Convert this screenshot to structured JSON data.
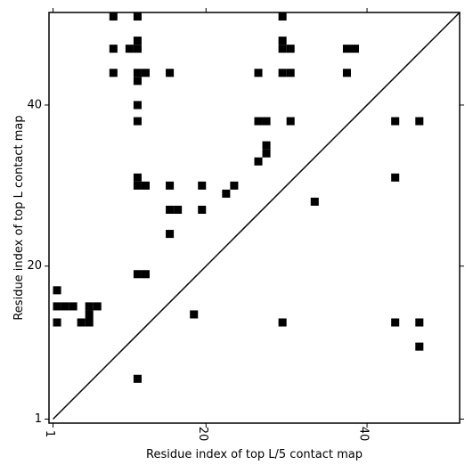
{
  "chart_data": {
    "type": "heatmap",
    "title": "",
    "xlabel": "Residue index of top L/5 contact map",
    "ylabel": "Residue index of top L contact map",
    "xlim": [
      0.5,
      51.5
    ],
    "ylim": [
      0.5,
      51.5
    ],
    "xticks": [
      1,
      20,
      40
    ],
    "yticks": [
      1,
      20,
      40
    ],
    "grid": false,
    "diagonal_line": true,
    "cell_color": "#000000",
    "cells": [
      [
        1.5,
        17
      ],
      [
        1.5,
        15
      ],
      [
        1.5,
        13
      ],
      [
        2.5,
        15
      ],
      [
        3.5,
        15
      ],
      [
        4.5,
        13
      ],
      [
        5.5,
        13
      ],
      [
        5.5,
        14
      ],
      [
        5.5,
        15
      ],
      [
        6.5,
        15
      ],
      [
        8.5,
        51
      ],
      [
        8.5,
        47
      ],
      [
        8.5,
        44
      ],
      [
        10.5,
        47
      ],
      [
        11.5,
        47
      ],
      [
        11.5,
        51
      ],
      [
        11.5,
        48
      ],
      [
        11.5,
        44
      ],
      [
        11.5,
        43
      ],
      [
        11.5,
        40
      ],
      [
        11.5,
        38
      ],
      [
        11.5,
        31
      ],
      [
        11.5,
        30
      ],
      [
        12.5,
        30
      ],
      [
        11.5,
        19
      ],
      [
        12.5,
        19
      ],
      [
        11.5,
        6
      ],
      [
        12.5,
        44
      ],
      [
        15.5,
        44
      ],
      [
        15.5,
        30
      ],
      [
        15.5,
        27
      ],
      [
        16.5,
        27
      ],
      [
        15.5,
        24
      ],
      [
        18.5,
        14
      ],
      [
        19.5,
        30
      ],
      [
        19.5,
        27
      ],
      [
        22.5,
        29
      ],
      [
        23.5,
        30
      ],
      [
        26.5,
        44
      ],
      [
        26.5,
        38
      ],
      [
        27.5,
        38
      ],
      [
        26.5,
        33
      ],
      [
        27.5,
        35
      ],
      [
        27.5,
        34
      ],
      [
        29.5,
        51
      ],
      [
        29.5,
        48
      ],
      [
        29.5,
        47
      ],
      [
        30.5,
        47
      ],
      [
        29.5,
        44
      ],
      [
        30.5,
        44
      ],
      [
        30.5,
        38
      ],
      [
        29.5,
        13
      ],
      [
        33.5,
        28
      ],
      [
        37.5,
        47
      ],
      [
        38.5,
        47
      ],
      [
        37.5,
        44
      ],
      [
        43.5,
        38
      ],
      [
        43.5,
        31
      ],
      [
        43.5,
        13
      ],
      [
        46.5,
        38
      ],
      [
        46.5,
        13
      ],
      [
        46.5,
        10
      ]
    ]
  }
}
